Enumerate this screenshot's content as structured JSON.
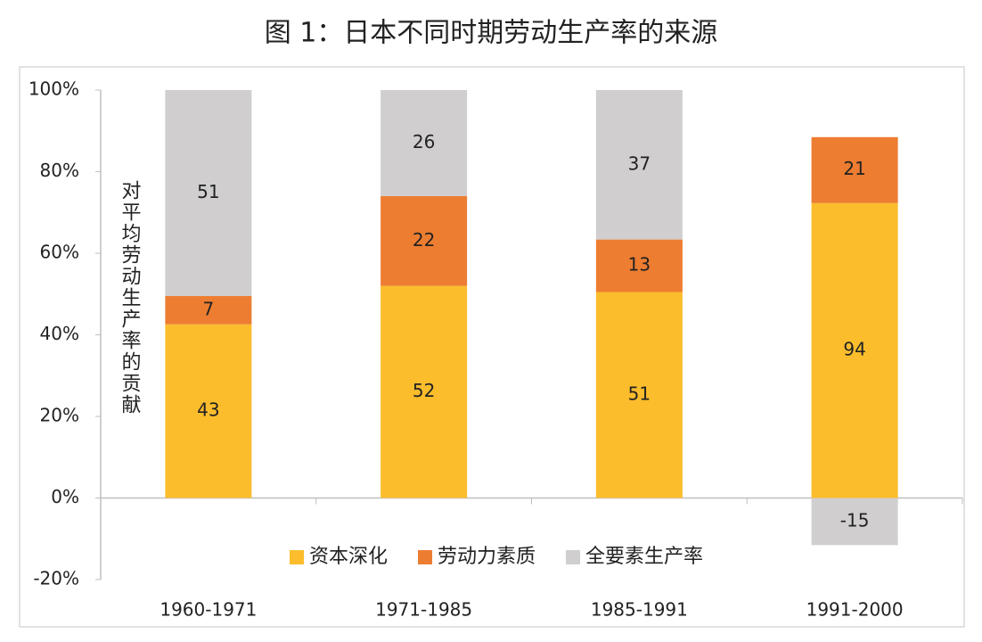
{
  "chart_data": {
    "type": "bar",
    "stacked": "percent",
    "title": "图 1：日本不同时期劳动生产率的来源",
    "y_label": "对平均劳动生产率的贡献",
    "categories": [
      "1960-1971",
      "1971-1985",
      "1985-1991",
      "1991-2000"
    ],
    "series": [
      {
        "name": "资本深化",
        "color": "#fbbd2c",
        "values": [
          43,
          52,
          51,
          94
        ]
      },
      {
        "name": "劳动力素质",
        "color": "#ed7d31",
        "values": [
          7,
          22,
          13,
          21
        ]
      },
      {
        "name": "全要素生产率",
        "color": "#d0cecf",
        "values": [
          51,
          26,
          37,
          -15
        ]
      }
    ],
    "ylim": [
      -20,
      100
    ],
    "yticks": [
      {
        "value": -20,
        "label": "-20%"
      },
      {
        "value": 0,
        "label": "0%"
      },
      {
        "value": 20,
        "label": "20%"
      },
      {
        "value": 40,
        "label": "40%"
      },
      {
        "value": 60,
        "label": "60%"
      },
      {
        "value": 80,
        "label": "80%"
      },
      {
        "value": 100,
        "label": "100%"
      }
    ],
    "legend": "bottom",
    "grid": false
  }
}
